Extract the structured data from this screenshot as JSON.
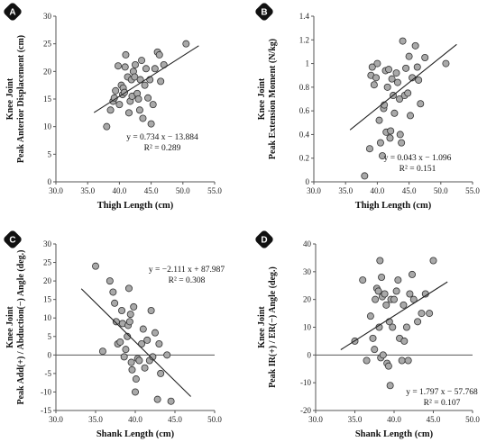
{
  "chart_data": [
    {
      "panel": "A",
      "type": "scatter",
      "ylabel_line1": "Knee Joint",
      "ylabel_line2": "Peak Anterior Displacement (cm)",
      "xlabel": "Thigh Length (cm)",
      "xlim": [
        30,
        55
      ],
      "xticks": [
        30,
        35,
        40,
        45,
        50,
        55
      ],
      "xtick_labels": [
        "30.0",
        "35.0",
        "40.0",
        "45.0",
        "50.0",
        "55.0"
      ],
      "ylim": [
        0,
        30
      ],
      "yticks": [
        0,
        5,
        10,
        15,
        20,
        25,
        30
      ],
      "ytick_labels": [
        "0",
        "5",
        "10",
        "15",
        "20",
        "25",
        "30"
      ],
      "zero_line": false,
      "equation": "y = 0.734 x − 13.884",
      "r2": "R² = 0.289",
      "trend": {
        "slope": 0.734,
        "intercept": -13.884,
        "x_range": [
          36,
          52.5
        ]
      },
      "points": [
        [
          38,
          10
        ],
        [
          38.6,
          13
        ],
        [
          39,
          14.6
        ],
        [
          39.2,
          15.2
        ],
        [
          39.4,
          16.5
        ],
        [
          39.8,
          21
        ],
        [
          40,
          14
        ],
        [
          40.3,
          17.5
        ],
        [
          40.5,
          15.8
        ],
        [
          40.6,
          17
        ],
        [
          40.8,
          16.2
        ],
        [
          40.9,
          20.8
        ],
        [
          41,
          23
        ],
        [
          41.3,
          19
        ],
        [
          41.5,
          12.5
        ],
        [
          41.7,
          14.6
        ],
        [
          41.9,
          18.5
        ],
        [
          42,
          15.5
        ],
        [
          42.2,
          20
        ],
        [
          42.4,
          19
        ],
        [
          42.5,
          21.2
        ],
        [
          42.8,
          16
        ],
        [
          43,
          15
        ],
        [
          43.2,
          13
        ],
        [
          43.3,
          18.5
        ],
        [
          43.5,
          22
        ],
        [
          43.7,
          11.5
        ],
        [
          44,
          17.5
        ],
        [
          44.2,
          20.5
        ],
        [
          44.5,
          15.2
        ],
        [
          44.8,
          18.5
        ],
        [
          45,
          10.5
        ],
        [
          45.3,
          14
        ],
        [
          45.6,
          20.5
        ],
        [
          46,
          23.5
        ],
        [
          46.3,
          23
        ],
        [
          46.5,
          18.2
        ],
        [
          47,
          21.2
        ],
        [
          50.5,
          25
        ]
      ]
    },
    {
      "panel": "B",
      "type": "scatter",
      "ylabel_line1": "Knee Joint",
      "ylabel_line2": "Peak Extension Moment (N/kg)",
      "xlabel": "Thigh Length (cm)",
      "xlim": [
        30,
        55
      ],
      "xticks": [
        30,
        35,
        40,
        45,
        50,
        55
      ],
      "xtick_labels": [
        "30.0",
        "35.0",
        "40.0",
        "45.0",
        "50.0",
        "55.0"
      ],
      "ylim": [
        0,
        1.4
      ],
      "yticks": [
        0,
        0.2,
        0.4,
        0.6,
        0.8,
        1.0,
        1.2,
        1.4
      ],
      "ytick_labels": [
        "0",
        "0.2",
        "0.4",
        "0.6",
        "0.8",
        "1",
        "1.2",
        "1.4"
      ],
      "zero_line": false,
      "equation": "y = 0.043 x − 1.096",
      "r2": "R² = 0.151",
      "trend": {
        "slope": 0.043,
        "intercept": -1.096,
        "x_range": [
          35.7,
          52.5
        ]
      },
      "points": [
        [
          38,
          0.05
        ],
        [
          38.8,
          0.28
        ],
        [
          39,
          0.9
        ],
        [
          39.2,
          0.97
        ],
        [
          39.5,
          0.82
        ],
        [
          39.8,
          0.88
        ],
        [
          40,
          1.0
        ],
        [
          40.3,
          0.52
        ],
        [
          40.5,
          0.33
        ],
        [
          40.8,
          0.22
        ],
        [
          41,
          0.62
        ],
        [
          41.1,
          0.65
        ],
        [
          41.3,
          0.94
        ],
        [
          41.4,
          0.42
        ],
        [
          41.6,
          0.8
        ],
        [
          41.8,
          0.95
        ],
        [
          42,
          0.37
        ],
        [
          42.1,
          0.43
        ],
        [
          42.3,
          0.87
        ],
        [
          42.5,
          0.73
        ],
        [
          42.7,
          0.58
        ],
        [
          43,
          0.92
        ],
        [
          43.2,
          0.84
        ],
        [
          43.5,
          0.7
        ],
        [
          43.6,
          0.4
        ],
        [
          43.8,
          0.33
        ],
        [
          44,
          1.19
        ],
        [
          44.3,
          0.73
        ],
        [
          44.5,
          0.96
        ],
        [
          44.8,
          0.75
        ],
        [
          45,
          1.06
        ],
        [
          45.2,
          0.56
        ],
        [
          45.5,
          0.88
        ],
        [
          46,
          1.15
        ],
        [
          46.3,
          0.97
        ],
        [
          46.5,
          0.86
        ],
        [
          46.8,
          0.66
        ],
        [
          47.5,
          1.05
        ],
        [
          50.8,
          1.0
        ]
      ]
    },
    {
      "panel": "C",
      "type": "scatter",
      "ylabel_line1": "Knee Joint",
      "ylabel_line2": "Peak Add(+) / Abduction(−) Angle (deg.)",
      "xlabel": "Shank Length (cm)",
      "xlim": [
        30,
        50
      ],
      "xticks": [
        30,
        35,
        40,
        45,
        50
      ],
      "xtick_labels": [
        "30.0",
        "35.0",
        "40.0",
        "45.0",
        "50.0"
      ],
      "ylim": [
        -15,
        30
      ],
      "yticks": [
        -15,
        -10,
        -5,
        0,
        5,
        10,
        15,
        20,
        25,
        30
      ],
      "ytick_labels": [
        "-15",
        "-10",
        "-5",
        "0",
        "5",
        "10",
        "15",
        "20",
        "25",
        "30"
      ],
      "zero_line": true,
      "equation": "y = −2.111 x + 87.987",
      "r2": "R² = 0.308",
      "trend": {
        "slope": -2.111,
        "intercept": 87.987,
        "x_range": [
          33.2,
          47
        ]
      },
      "points": [
        [
          35,
          24
        ],
        [
          35.9,
          1
        ],
        [
          36.8,
          20
        ],
        [
          37.2,
          17
        ],
        [
          37.4,
          14
        ],
        [
          37.6,
          9
        ],
        [
          37.8,
          3
        ],
        [
          38.1,
          3.5
        ],
        [
          38.3,
          12
        ],
        [
          38.4,
          8.5
        ],
        [
          38.6,
          -0.5
        ],
        [
          38.8,
          1.5
        ],
        [
          39,
          5
        ],
        [
          39.1,
          8
        ],
        [
          39.2,
          18
        ],
        [
          39.3,
          9
        ],
        [
          39.4,
          11
        ],
        [
          39.5,
          -2
        ],
        [
          39.6,
          -4
        ],
        [
          39.8,
          13
        ],
        [
          40,
          -10
        ],
        [
          40.1,
          -6.5
        ],
        [
          40.3,
          -1
        ],
        [
          40.5,
          -1.5
        ],
        [
          40.8,
          3
        ],
        [
          41,
          7
        ],
        [
          41.2,
          -3.5
        ],
        [
          41.5,
          4
        ],
        [
          41.8,
          -1.5
        ],
        [
          42,
          12
        ],
        [
          42.2,
          -0.5
        ],
        [
          42.5,
          6
        ],
        [
          42.8,
          -12
        ],
        [
          43,
          3
        ],
        [
          43.2,
          -5
        ],
        [
          44,
          0
        ],
        [
          44.5,
          -12.5
        ]
      ]
    },
    {
      "panel": "D",
      "type": "scatter",
      "ylabel_line1": "Knee Joint",
      "ylabel_line2": "Peak IR(+) / ER(−) Angle (deg.)",
      "xlabel": "Shank Length (cm)",
      "xlim": [
        30,
        50
      ],
      "xticks": [
        30,
        35,
        40,
        45,
        50
      ],
      "xtick_labels": [
        "30.0",
        "35.0",
        "40.0",
        "45.0",
        "50.0"
      ],
      "ylim": [
        -20,
        40
      ],
      "yticks": [
        -20,
        -10,
        0,
        10,
        20,
        30,
        40
      ],
      "ytick_labels": [
        "-20",
        "-10",
        "0",
        "10",
        "20",
        "30",
        "40"
      ],
      "zero_line": true,
      "equation": "y = 1.797 x − 57.768",
      "r2": "R² = 0.107",
      "trend": {
        "slope": 1.797,
        "intercept": -57.768,
        "x_range": [
          33.2,
          46.8
        ]
      },
      "points": [
        [
          35,
          5
        ],
        [
          36,
          27
        ],
        [
          36.5,
          -2
        ],
        [
          37,
          14
        ],
        [
          37.3,
          6
        ],
        [
          37.5,
          2
        ],
        [
          37.6,
          20
        ],
        [
          37.8,
          24
        ],
        [
          38,
          23
        ],
        [
          38.1,
          10
        ],
        [
          38.2,
          34
        ],
        [
          38.3,
          -1
        ],
        [
          38.4,
          28
        ],
        [
          38.5,
          21
        ],
        [
          38.6,
          0
        ],
        [
          38.8,
          22
        ],
        [
          39,
          18
        ],
        [
          39.1,
          -3
        ],
        [
          39.3,
          -4
        ],
        [
          39.4,
          12
        ],
        [
          39.5,
          -11
        ],
        [
          39.6,
          20
        ],
        [
          39.8,
          10
        ],
        [
          40,
          20
        ],
        [
          40.3,
          23
        ],
        [
          40.5,
          27
        ],
        [
          40.7,
          6
        ],
        [
          41,
          -2
        ],
        [
          41.2,
          18
        ],
        [
          41.3,
          5
        ],
        [
          41.6,
          10
        ],
        [
          41.8,
          -2
        ],
        [
          42,
          22
        ],
        [
          42.3,
          29
        ],
        [
          42.5,
          20
        ],
        [
          43,
          12
        ],
        [
          43.5,
          15
        ],
        [
          44,
          22
        ],
        [
          44.5,
          15
        ],
        [
          45,
          34
        ]
      ]
    }
  ]
}
